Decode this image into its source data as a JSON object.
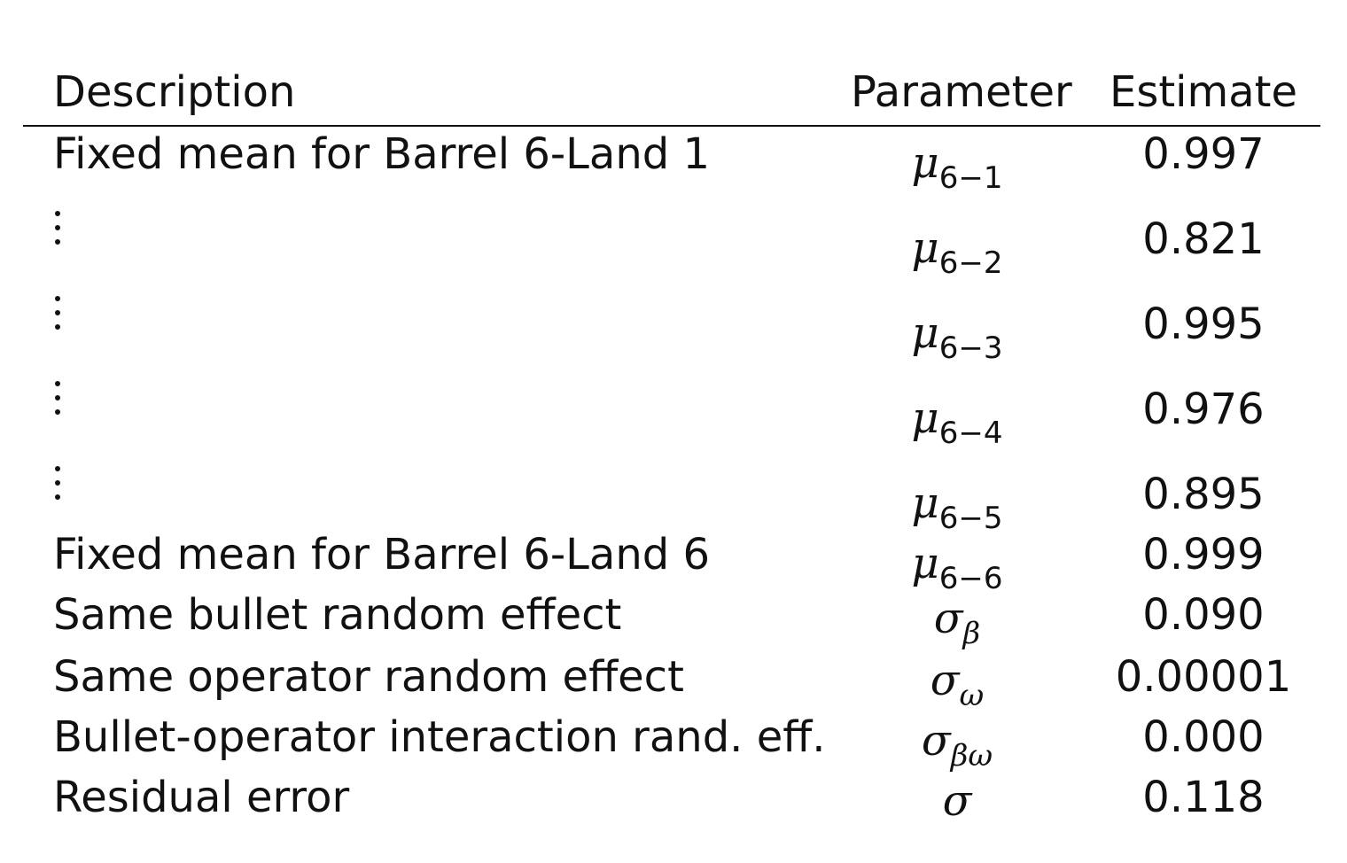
{
  "headers": {
    "description": "Description",
    "parameter": "Parameter",
    "estimate": "Estimate"
  },
  "rows": [
    {
      "description": "Fixed mean for Barrel 6-Land 1",
      "param_symbol": "μ",
      "param_sub": "6−1",
      "estimate": "0.997"
    },
    {
      "description": "⋮",
      "param_symbol": "μ",
      "param_sub": "6−2",
      "estimate": "0.821"
    },
    {
      "description": "⋮",
      "param_symbol": "μ",
      "param_sub": "6−3",
      "estimate": "0.995"
    },
    {
      "description": "⋮",
      "param_symbol": "μ",
      "param_sub": "6−4",
      "estimate": "0.976"
    },
    {
      "description": "⋮",
      "param_symbol": "μ",
      "param_sub": "6−5",
      "estimate": "0.895"
    },
    {
      "description": "Fixed mean for Barrel 6-Land 6",
      "param_symbol": "μ",
      "param_sub": "6−6",
      "estimate": "0.999"
    },
    {
      "description": "Same bullet random effect",
      "param_symbol": "σ",
      "param_sub": "β",
      "estimate": "0.090"
    },
    {
      "description": "Same operator random effect",
      "param_symbol": "σ",
      "param_sub": "ω",
      "estimate": "0.00001"
    },
    {
      "description": "Bullet-operator interaction rand. eff.",
      "param_symbol": "σ",
      "param_sub": "βω",
      "estimate": "0.000"
    },
    {
      "description": "Residual error",
      "param_symbol": "σ",
      "param_sub": "",
      "estimate": "0.118"
    }
  ]
}
